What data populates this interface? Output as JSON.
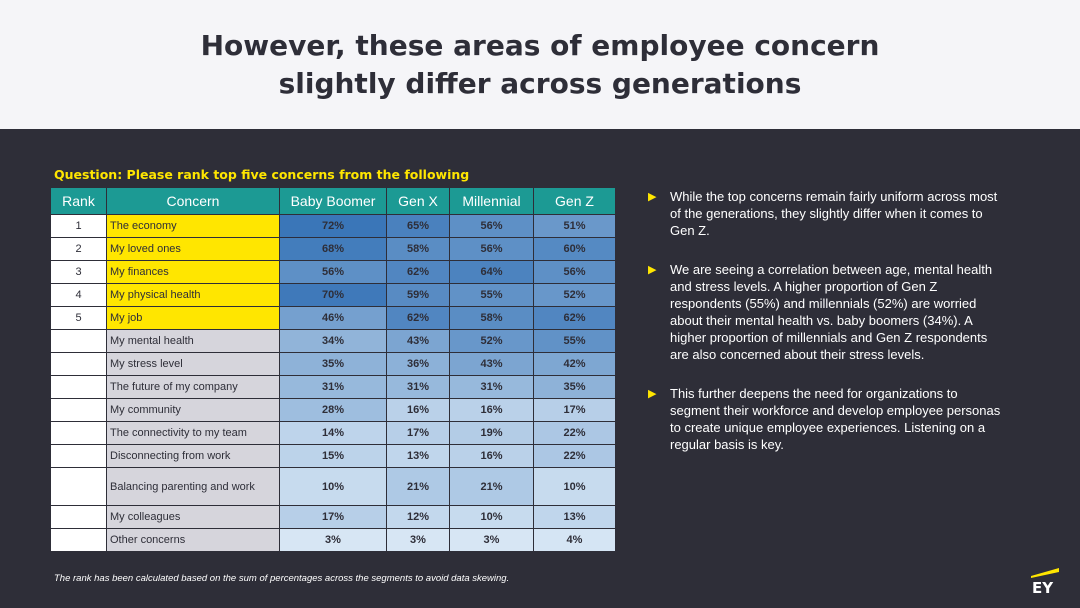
{
  "title": "However, these areas of employee concern slightly differ across generations",
  "question": "Question: Please rank top five concerns from the following",
  "table": {
    "headers": [
      "Rank",
      "Concern",
      "Baby Boomer",
      "Gen X",
      "Millennial",
      "Gen Z"
    ],
    "rows": [
      {
        "rank": "1",
        "concern": "The economy",
        "values": [
          "72%",
          "65%",
          "56%",
          "51%"
        ]
      },
      {
        "rank": "2",
        "concern": "My loved ones",
        "values": [
          "68%",
          "58%",
          "56%",
          "60%"
        ]
      },
      {
        "rank": "3",
        "concern": "My finances",
        "values": [
          "56%",
          "62%",
          "64%",
          "56%"
        ]
      },
      {
        "rank": "4",
        "concern": "My physical health",
        "values": [
          "70%",
          "59%",
          "55%",
          "52%"
        ]
      },
      {
        "rank": "5",
        "concern": "My job",
        "values": [
          "46%",
          "62%",
          "58%",
          "62%"
        ]
      },
      {
        "rank": "",
        "concern": "My mental health",
        "values": [
          "34%",
          "43%",
          "52%",
          "55%"
        ]
      },
      {
        "rank": "",
        "concern": "My stress level",
        "values": [
          "35%",
          "36%",
          "43%",
          "42%"
        ]
      },
      {
        "rank": "",
        "concern": "The future of my company",
        "values": [
          "31%",
          "31%",
          "31%",
          "35%"
        ]
      },
      {
        "rank": "",
        "concern": "My community",
        "values": [
          "28%",
          "16%",
          "16%",
          "17%"
        ]
      },
      {
        "rank": "",
        "concern": "The connectivity to my team",
        "values": [
          "14%",
          "17%",
          "19%",
          "22%"
        ]
      },
      {
        "rank": "",
        "concern": "Disconnecting from work",
        "values": [
          "15%",
          "13%",
          "16%",
          "22%"
        ]
      },
      {
        "rank": "",
        "concern": "Balancing parenting and work",
        "values": [
          "10%",
          "21%",
          "21%",
          "10%"
        ]
      },
      {
        "rank": "",
        "concern": "My colleagues",
        "values": [
          "17%",
          "12%",
          "10%",
          "13%"
        ]
      },
      {
        "rank": "",
        "concern": "Other concerns",
        "values": [
          "3%",
          "3%",
          "3%",
          "4%"
        ]
      }
    ]
  },
  "bullets": [
    "While the top concerns remain fairly uniform across most of the generations, they slightly differ when it comes to Gen Z.",
    "We are seeing a correlation between age, mental health and stress levels. A higher proportion of Gen Z respondents (55%) and millennials (52%) are worried about their mental health vs. baby boomers (34%). A higher proportion of millennials and Gen Z respondents are also concerned about their stress levels.",
    "This further deepens the need for organizations to segment their workforce and develop employee personas to create unique employee experiences. Listening on a regular basis is key."
  ],
  "footnote": "The rank has been calculated based on the sum of percentages across the segments to avoid data skewing.",
  "logo_text": "EY",
  "colors": {
    "accent": "#ffe600",
    "header_bg": "#1c9a94",
    "background": "#2e2e38"
  }
}
